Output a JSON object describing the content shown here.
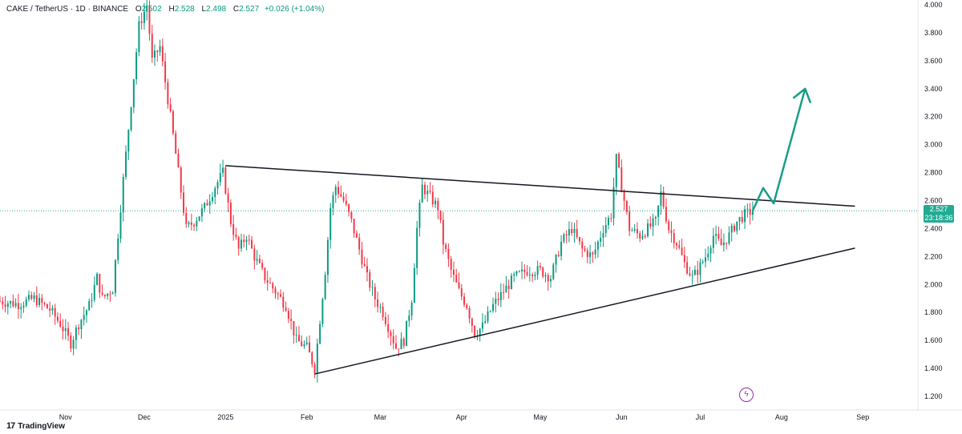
{
  "header": {
    "symbol": "CAKE / TetherUS · 1D · BINANCE",
    "o_label": "O",
    "o_value": "2.502",
    "h_label": "H",
    "h_value": "2.528",
    "l_label": "L",
    "l_value": "2.498",
    "c_label": "C",
    "c_value": "2.527",
    "change": "+0.026 (+1.04%)"
  },
  "price_tag": {
    "price": "2.527",
    "countdown": "23:18:36"
  },
  "brand": {
    "logo": "17",
    "name": "TradingView"
  },
  "colors": {
    "up": "#089981",
    "down": "#f23645",
    "trendline": "#131722",
    "arrow": "#1a9e86",
    "lastprice": "#22ab94"
  },
  "chart_data": {
    "type": "candlestick",
    "y_axis": {
      "min": 1.2,
      "max": 4.0,
      "ticks": [
        "1.200",
        "1.400",
        "1.600",
        "1.800",
        "2.000",
        "2.200",
        "2.400",
        "2.600",
        "2.800",
        "3.000",
        "3.200",
        "3.400",
        "3.600",
        "3.800",
        "4.000"
      ],
      "side": "right"
    },
    "x_axis": {
      "ticks": [
        {
          "label": "Nov",
          "day": 0
        },
        {
          "label": "Dec",
          "day": 30
        },
        {
          "label": "2025",
          "day": 61
        },
        {
          "label": "Feb",
          "day": 92
        },
        {
          "label": "Mar",
          "day": 120
        },
        {
          "label": "Apr",
          "day": 151
        },
        {
          "label": "May",
          "day": 181
        },
        {
          "label": "Jun",
          "day": 212
        },
        {
          "label": "Jul",
          "day": 242
        },
        {
          "label": "Aug",
          "day": 273
        },
        {
          "label": "Sep",
          "day": 304
        }
      ],
      "start_day": -25,
      "end_day": 325
    },
    "last_price": 2.527,
    "price_keypoints": [
      [
        -25,
        1.88
      ],
      [
        -18,
        1.86
      ],
      [
        -12,
        1.9
      ],
      [
        -6,
        1.82
      ],
      [
        -2,
        1.72
      ],
      [
        2,
        1.58
      ],
      [
        5,
        1.72
      ],
      [
        9,
        1.85
      ],
      [
        12,
        2.05
      ],
      [
        14,
        1.9
      ],
      [
        18,
        1.97
      ],
      [
        22,
        2.75
      ],
      [
        25,
        3.3
      ],
      [
        28,
        3.85
      ],
      [
        31,
        4.0
      ],
      [
        33,
        3.6
      ],
      [
        36,
        3.7
      ],
      [
        40,
        3.2
      ],
      [
        43,
        2.8
      ],
      [
        46,
        2.4
      ],
      [
        49,
        2.45
      ],
      [
        53,
        2.55
      ],
      [
        57,
        2.7
      ],
      [
        60,
        2.8
      ],
      [
        63,
        2.45
      ],
      [
        66,
        2.25
      ],
      [
        69,
        2.35
      ],
      [
        72,
        2.2
      ],
      [
        76,
        2.05
      ],
      [
        80,
        1.95
      ],
      [
        84,
        1.85
      ],
      [
        88,
        1.6
      ],
      [
        92,
        1.55
      ],
      [
        95,
        1.4
      ],
      [
        97,
        1.75
      ],
      [
        99,
        2.1
      ],
      [
        101,
        2.55
      ],
      [
        103,
        2.7
      ],
      [
        106,
        2.6
      ],
      [
        109,
        2.45
      ],
      [
        112,
        2.25
      ],
      [
        115,
        2.05
      ],
      [
        118,
        1.9
      ],
      [
        121,
        1.8
      ],
      [
        123,
        1.7
      ],
      [
        126,
        1.55
      ],
      [
        129,
        1.6
      ],
      [
        132,
        1.9
      ],
      [
        134,
        2.4
      ],
      [
        136,
        2.7
      ],
      [
        138,
        2.65
      ],
      [
        140,
        2.6
      ],
      [
        142,
        2.55
      ],
      [
        144,
        2.3
      ],
      [
        147,
        2.1
      ],
      [
        150,
        1.95
      ],
      [
        153,
        1.85
      ],
      [
        156,
        1.65
      ],
      [
        159,
        1.7
      ],
      [
        163,
        1.85
      ],
      [
        167,
        1.95
      ],
      [
        171,
        2.05
      ],
      [
        176,
        2.1
      ],
      [
        181,
        2.1
      ],
      [
        185,
        2.05
      ],
      [
        189,
        2.3
      ],
      [
        193,
        2.4
      ],
      [
        197,
        2.25
      ],
      [
        201,
        2.2
      ],
      [
        205,
        2.4
      ],
      [
        208,
        2.5
      ],
      [
        210,
        2.9
      ],
      [
        212,
        2.7
      ],
      [
        215,
        2.4
      ],
      [
        219,
        2.35
      ],
      [
        222,
        2.4
      ],
      [
        225,
        2.45
      ],
      [
        227,
        2.65
      ],
      [
        230,
        2.4
      ],
      [
        233,
        2.3
      ],
      [
        236,
        2.15
      ],
      [
        239,
        2.05
      ],
      [
        241,
        2.1
      ],
      [
        244,
        2.2
      ],
      [
        247,
        2.35
      ],
      [
        250,
        2.28
      ],
      [
        253,
        2.35
      ],
      [
        256,
        2.45
      ],
      [
        259,
        2.5
      ],
      [
        262,
        2.527
      ]
    ],
    "trendlines": [
      {
        "name": "resistance",
        "from": [
          61,
          2.85
        ],
        "to": [
          301,
          2.56
        ]
      },
      {
        "name": "support",
        "from": [
          95,
          1.36
        ],
        "to": [
          301,
          2.26
        ]
      }
    ],
    "projection_arrow": [
      [
        262,
        2.527
      ],
      [
        266,
        2.69
      ],
      [
        270,
        2.58
      ],
      [
        282,
        3.4
      ]
    ]
  }
}
